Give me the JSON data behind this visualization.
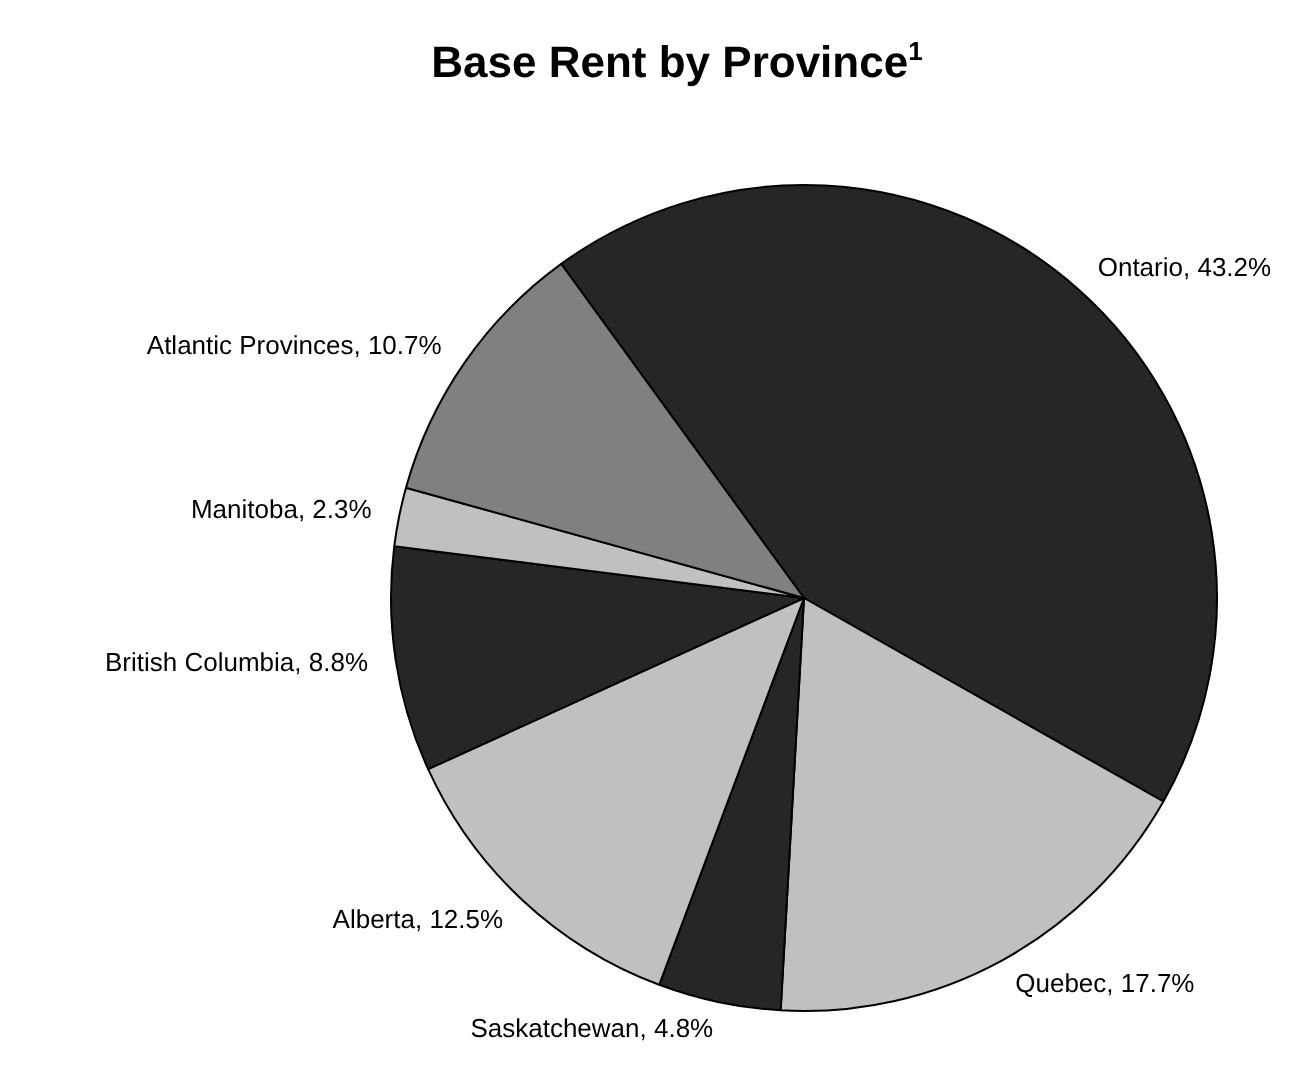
{
  "chart_data": {
    "type": "pie",
    "title": "Base Rent by Province$^{1}$",
    "categories": [
      "Ontario",
      "Quebec",
      "Saskatchewan",
      "Alberta",
      "British Columbia",
      "Manitoba",
      "Atlantic Provinces"
    ],
    "values": [
      43.2,
      17.7,
      4.8,
      12.5,
      8.8,
      2.3,
      10.7
    ],
    "value_labels": [
      "43.2%",
      "17.7%",
      "4.8%",
      "12.5%",
      "8.8%",
      "2.3%",
      "10.7%"
    ],
    "colors": [
      "#262626",
      "#c0c0c0",
      "#262626",
      "#c0c0c0",
      "#262626",
      "#c0c0c0",
      "#808080"
    ],
    "data_labels": true,
    "legend": false
  }
}
